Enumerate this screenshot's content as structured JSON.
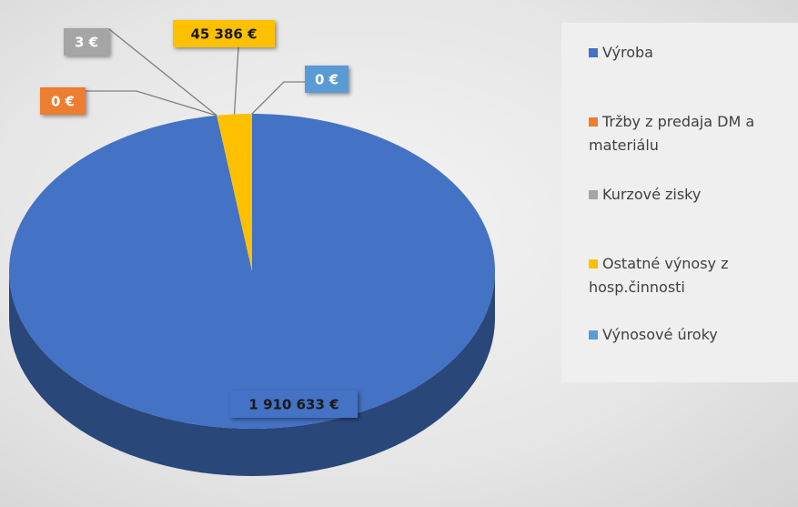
{
  "chart_data": {
    "type": "pie",
    "categories": [
      "Výroba",
      "Tržby z predaja DM a materiálu",
      "Kurzové zisky",
      "Ostatné výnosy z hosp.činnosti",
      "Výnosové úroky"
    ],
    "values": [
      1910633,
      0,
      3,
      45386,
      0
    ],
    "value_labels": [
      "1 910 633 €",
      "0 €",
      "3 €",
      "45 386 €",
      "0 €"
    ],
    "colors": [
      "#4472c4",
      "#ed7d31",
      "#a5a5a5",
      "#ffc000",
      "#5b9bd5"
    ],
    "legend": "right"
  }
}
